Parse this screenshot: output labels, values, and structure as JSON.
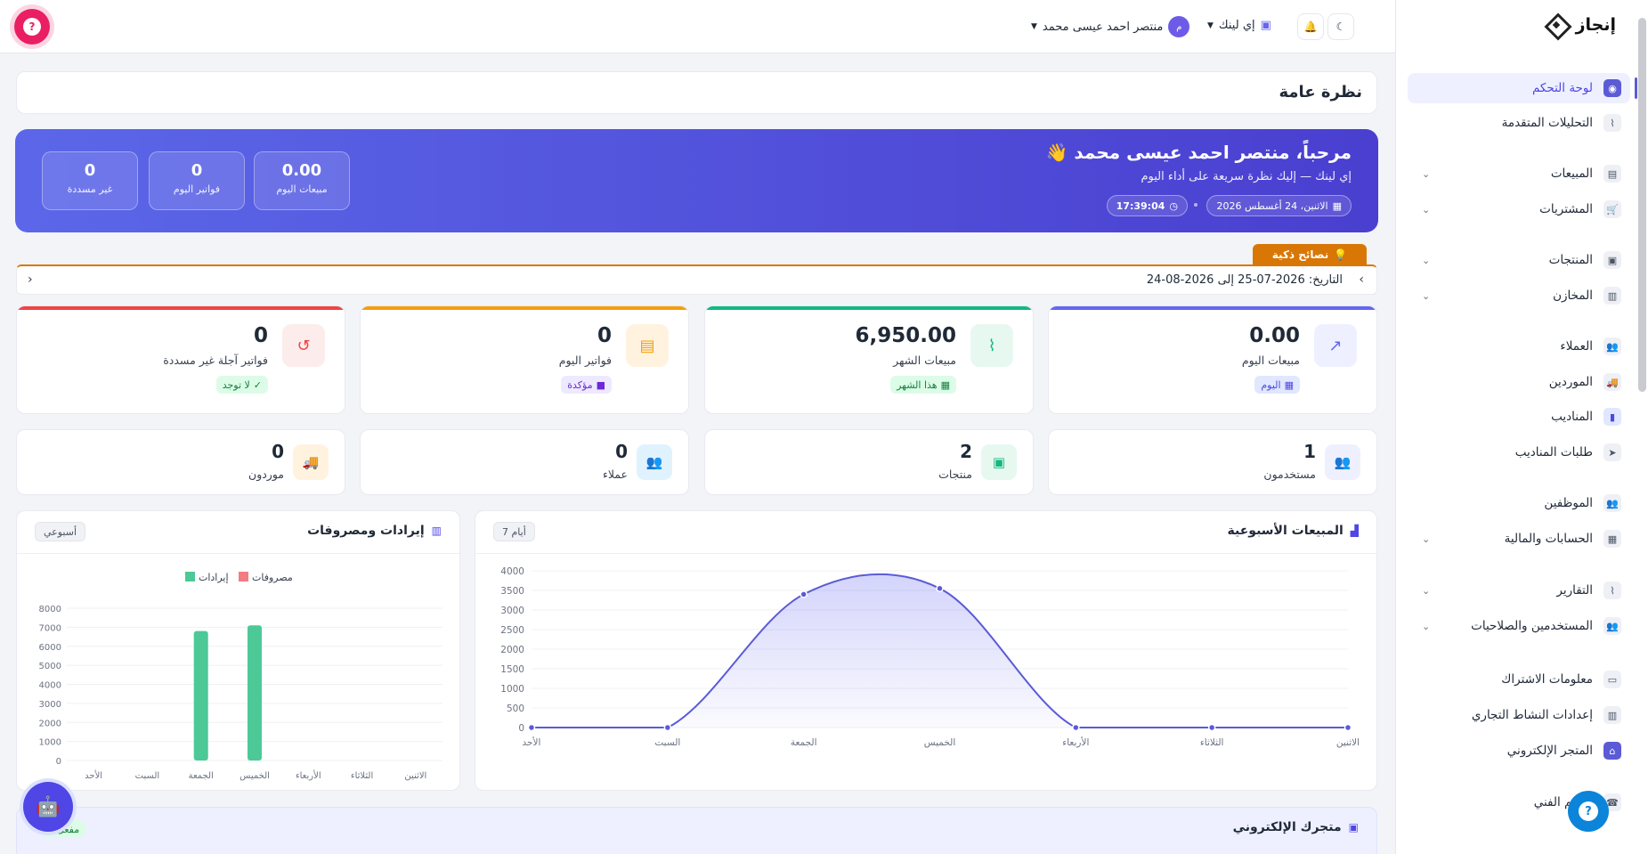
{
  "app": {
    "brand": "إنجاز",
    "logo_icon": "diamond-logo-icon"
  },
  "topbar": {
    "user_name": "منتصر احمد عيسى محمد",
    "avatar_initial": "م",
    "org": "إي لينك",
    "help": "?"
  },
  "sidebar": {
    "items": [
      {
        "label": "لوحة التحكم",
        "icon": "dashboard-icon",
        "glyph": "◉",
        "active": true
      },
      {
        "label": "التحليلات المتقدمة",
        "icon": "analytics-icon",
        "glyph": "⌇"
      },
      {
        "label": "المبيعات",
        "icon": "receipt-icon",
        "glyph": "▤",
        "chev": "⌄"
      },
      {
        "label": "المشتريات",
        "icon": "cart-icon",
        "glyph": "🛒",
        "chev": "⌄"
      },
      {
        "label": "المنتجات",
        "icon": "boxes-icon",
        "glyph": "▣",
        "chev": "⌄"
      },
      {
        "label": "المخازن",
        "icon": "warehouse-icon",
        "glyph": "▥",
        "chev": "⌄"
      },
      {
        "label": "العملاء",
        "icon": "users-icon",
        "glyph": "👥"
      },
      {
        "label": "الموردين",
        "icon": "truck-icon",
        "glyph": "🚚"
      },
      {
        "label": "المناديب",
        "icon": "id-badge-icon",
        "glyph": "▮"
      },
      {
        "label": "طلبات المناديب",
        "icon": "paper-plane-icon",
        "glyph": "➤"
      },
      {
        "label": "الموظفين",
        "icon": "team-icon",
        "glyph": "👥"
      },
      {
        "label": "الحسابات والمالية",
        "icon": "calculator-icon",
        "glyph": "▦",
        "chev": "⌄"
      },
      {
        "label": "التقارير",
        "icon": "chart-icon",
        "glyph": "⌇",
        "chev": "⌄"
      },
      {
        "label": "المستخدمين والصلاحيات",
        "icon": "user-shield-icon",
        "glyph": "👥",
        "chev": "⌄"
      },
      {
        "label": "معلومات الاشتراك",
        "icon": "credit-card-icon",
        "glyph": "▭"
      },
      {
        "label": "إعدادات النشاط التجاري",
        "icon": "building-icon",
        "glyph": "▥"
      },
      {
        "label": "المتجر الإلكتروني",
        "icon": "store-icon",
        "glyph": "⌂"
      },
      {
        "label": "الدعم الفني",
        "icon": "support-icon",
        "glyph": "☎"
      }
    ]
  },
  "page": {
    "title": "نظرة عامة"
  },
  "hero": {
    "greeting": "مرحباً، منتصر احمد عيسى محمد 👋",
    "subtitle": "إي لينك — إليك نظرة سريعة على أداء اليوم",
    "date": "الاثنين، 24 أغسطس 2026",
    "time": "17:39:04",
    "stats": [
      {
        "value": "0.00",
        "label": "مبيعات اليوم"
      },
      {
        "value": "0",
        "label": "فواتير اليوم"
      },
      {
        "value": "0",
        "label": "غير مسددة"
      }
    ]
  },
  "tips": {
    "tab": "نصائح ذكية",
    "text": "التاريخ: 2026-07-25 إلى 2026-08-24",
    "prev": "‹",
    "next": "›"
  },
  "stats": [
    {
      "value": "0.00",
      "label": "مبيعات اليوم",
      "badge": "اليوم",
      "color": "#6366f1"
    },
    {
      "value": "6,950.00",
      "label": "مبيعات الشهر",
      "badge": "هذا الشهر",
      "color": "#10b981"
    },
    {
      "value": "0",
      "label": "فواتير اليوم",
      "badge": "مؤكدة",
      "color": "#f59e0b"
    },
    {
      "value": "0",
      "label": "فواتير آجلة غير مسددة",
      "badge": "لا توجد",
      "color": "#ef4444"
    }
  ],
  "mini": [
    {
      "value": "1",
      "label": "مستخدمون"
    },
    {
      "value": "2",
      "label": "منتجات"
    },
    {
      "value": "0",
      "label": "عملاء"
    },
    {
      "value": "0",
      "label": "موردون"
    }
  ],
  "weekly": {
    "title": "المبيعات الأسبوعية",
    "chip": "7 أيام"
  },
  "revexp": {
    "title": "إيرادات ومصروفات",
    "chip": "أسبوعي"
  },
  "store": {
    "title": "متجرك الإلكتروني",
    "status": "مفعّل"
  },
  "chart_data": [
    {
      "type": "area",
      "title": "المبيعات الأسبوعية",
      "categories": [
        "الاثنين",
        "الثلاثاء",
        "الأربعاء",
        "الخميس",
        "الجمعة",
        "السبت",
        "الأحد"
      ],
      "series": [
        {
          "values": [
            0,
            0,
            0,
            3550,
            3400,
            0,
            0
          ]
        }
      ],
      "ylim": [
        0,
        4000
      ],
      "yticks": [
        0,
        500,
        1000,
        1500,
        2000,
        2500,
        3000,
        3500,
        4000
      ],
      "grid": true
    },
    {
      "type": "bar",
      "title": "إيرادات ومصروفات",
      "categories": [
        "الاثنين",
        "الثلاثاء",
        "الأربعاء",
        "الخميس",
        "الجمعة",
        "السبت",
        "الأحد"
      ],
      "series": [
        {
          "name": "إيرادات",
          "values": [
            0,
            0,
            0,
            7100,
            6800,
            0,
            0
          ],
          "color": "#4cc997"
        },
        {
          "name": "مصروفات",
          "values": [
            0,
            0,
            0,
            0,
            0,
            0,
            0
          ],
          "color": "#f47c80"
        }
      ],
      "ylim": [
        0,
        8000
      ],
      "yticks": [
        0,
        1000,
        2000,
        3000,
        4000,
        5000,
        6000,
        7000,
        8000
      ],
      "legend": "top",
      "grid": true
    }
  ]
}
